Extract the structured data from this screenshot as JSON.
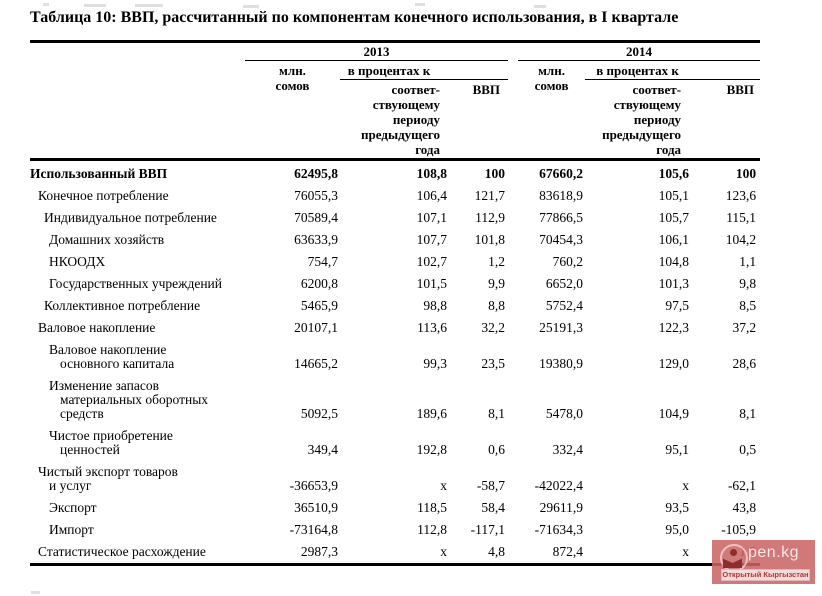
{
  "title": "Таблица 10: ВВП, рассчитанный по компонентам конечного использования, в I квартале",
  "table": {
    "header": {
      "years": [
        "2013",
        "2014"
      ],
      "mln_label": "млн.\nсомов",
      "pct_label": "в процентах к",
      "prev_period_label": "соответ-\nствующему\nпериоду\nпредыдущего\nгода",
      "gdp_label": "ВВП"
    },
    "na_symbol": "х",
    "columns": [
      "label",
      "mln-2013",
      "pct-prev-2013",
      "pct-gdp-2013",
      "mln-2014",
      "pct-prev-2014",
      "pct-gdp-2014"
    ],
    "rows": [
      {
        "label_lines": [
          "Использованный ВВП"
        ],
        "indent": 0,
        "bold": true,
        "values": [
          "62495,8",
          "108,8",
          "100",
          "67660,2",
          "105,6",
          "100"
        ]
      },
      {
        "label_lines": [
          "Конечное потребление"
        ],
        "indent": 1,
        "bold": false,
        "values": [
          "76055,3",
          "106,4",
          "121,7",
          "83618,9",
          "105,1",
          "123,6"
        ]
      },
      {
        "label_lines": [
          "Индивидуальное потребление"
        ],
        "indent": 2,
        "bold": false,
        "values": [
          "70589,4",
          "107,1",
          "112,9",
          "77866,5",
          "105,7",
          "115,1"
        ]
      },
      {
        "label_lines": [
          "Домашних хозяйств"
        ],
        "indent": 3,
        "bold": false,
        "values": [
          "63633,9",
          "107,7",
          "101,8",
          "70454,3",
          "106,1",
          "104,2"
        ]
      },
      {
        "label_lines": [
          "НКООДХ"
        ],
        "indent": 3,
        "bold": false,
        "values": [
          "754,7",
          "102,7",
          "1,2",
          "760,2",
          "104,8",
          "1,1"
        ]
      },
      {
        "label_lines": [
          "Государственных учреждений"
        ],
        "indent": 3,
        "bold": false,
        "values": [
          "6200,8",
          "101,5",
          "9,9",
          "6652,0",
          "101,3",
          "9,8"
        ]
      },
      {
        "label_lines": [
          "Коллективное потребление"
        ],
        "indent": 2,
        "bold": false,
        "values": [
          "5465,9",
          "98,8",
          "8,8",
          "5752,4",
          "97,5",
          "8,5"
        ]
      },
      {
        "label_lines": [
          "Валовое накопление"
        ],
        "indent": 1,
        "bold": false,
        "values": [
          "20107,1",
          "113,6",
          "32,2",
          "25191,3",
          "122,3",
          "37,2"
        ]
      },
      {
        "label_lines": [
          "Валовое накопление",
          "основного капитала"
        ],
        "indent": 3,
        "bold": false,
        "values": [
          "14665,2",
          "99,3",
          "23,5",
          "19380,9",
          "129,0",
          "28,6"
        ]
      },
      {
        "label_lines": [
          "Изменение запасов",
          "материальных оборотных",
          "средств"
        ],
        "indent": 3,
        "bold": false,
        "values": [
          "5092,5",
          "189,6",
          "8,1",
          "5478,0",
          "104,9",
          "8,1"
        ]
      },
      {
        "label_lines": [
          "Чистое приобретение",
          "ценностей"
        ],
        "indent": 3,
        "bold": false,
        "values": [
          "349,4",
          "192,8",
          "0,6",
          "332,4",
          "95,1",
          "0,5"
        ]
      },
      {
        "label_lines": [
          "Чистый экспорт товаров",
          "и услуг"
        ],
        "indent": 1,
        "bold": false,
        "values": [
          "-36653,9",
          "х",
          "-58,7",
          "-42022,4",
          "х",
          "-62,1"
        ]
      },
      {
        "label_lines": [
          "Экспорт"
        ],
        "indent": 3,
        "bold": false,
        "values": [
          "36510,9",
          "118,5",
          "58,4",
          "29611,9",
          "93,5",
          "43,8"
        ]
      },
      {
        "label_lines": [
          "Импорт"
        ],
        "indent": 3,
        "bold": false,
        "values": [
          "-73164,8",
          "112,8",
          "-117,1",
          "-71634,3",
          "95,0",
          "-105,9"
        ]
      },
      {
        "label_lines": [
          "Статистическое расхождение"
        ],
        "indent": 1,
        "bold": false,
        "values": [
          "2987,3",
          "х",
          "4,8",
          "872,4",
          "х",
          "1,3"
        ]
      }
    ]
  },
  "watermark": {
    "brand": "pen.kg",
    "subtitle": "Открытый Кыргызстан",
    "colors": {
      "background": "#ca6464",
      "label_background": "#f2dbdb",
      "label_text": "#b03636",
      "brand_text": "#f4e6e6",
      "glyph": "#8c2e2e"
    }
  }
}
